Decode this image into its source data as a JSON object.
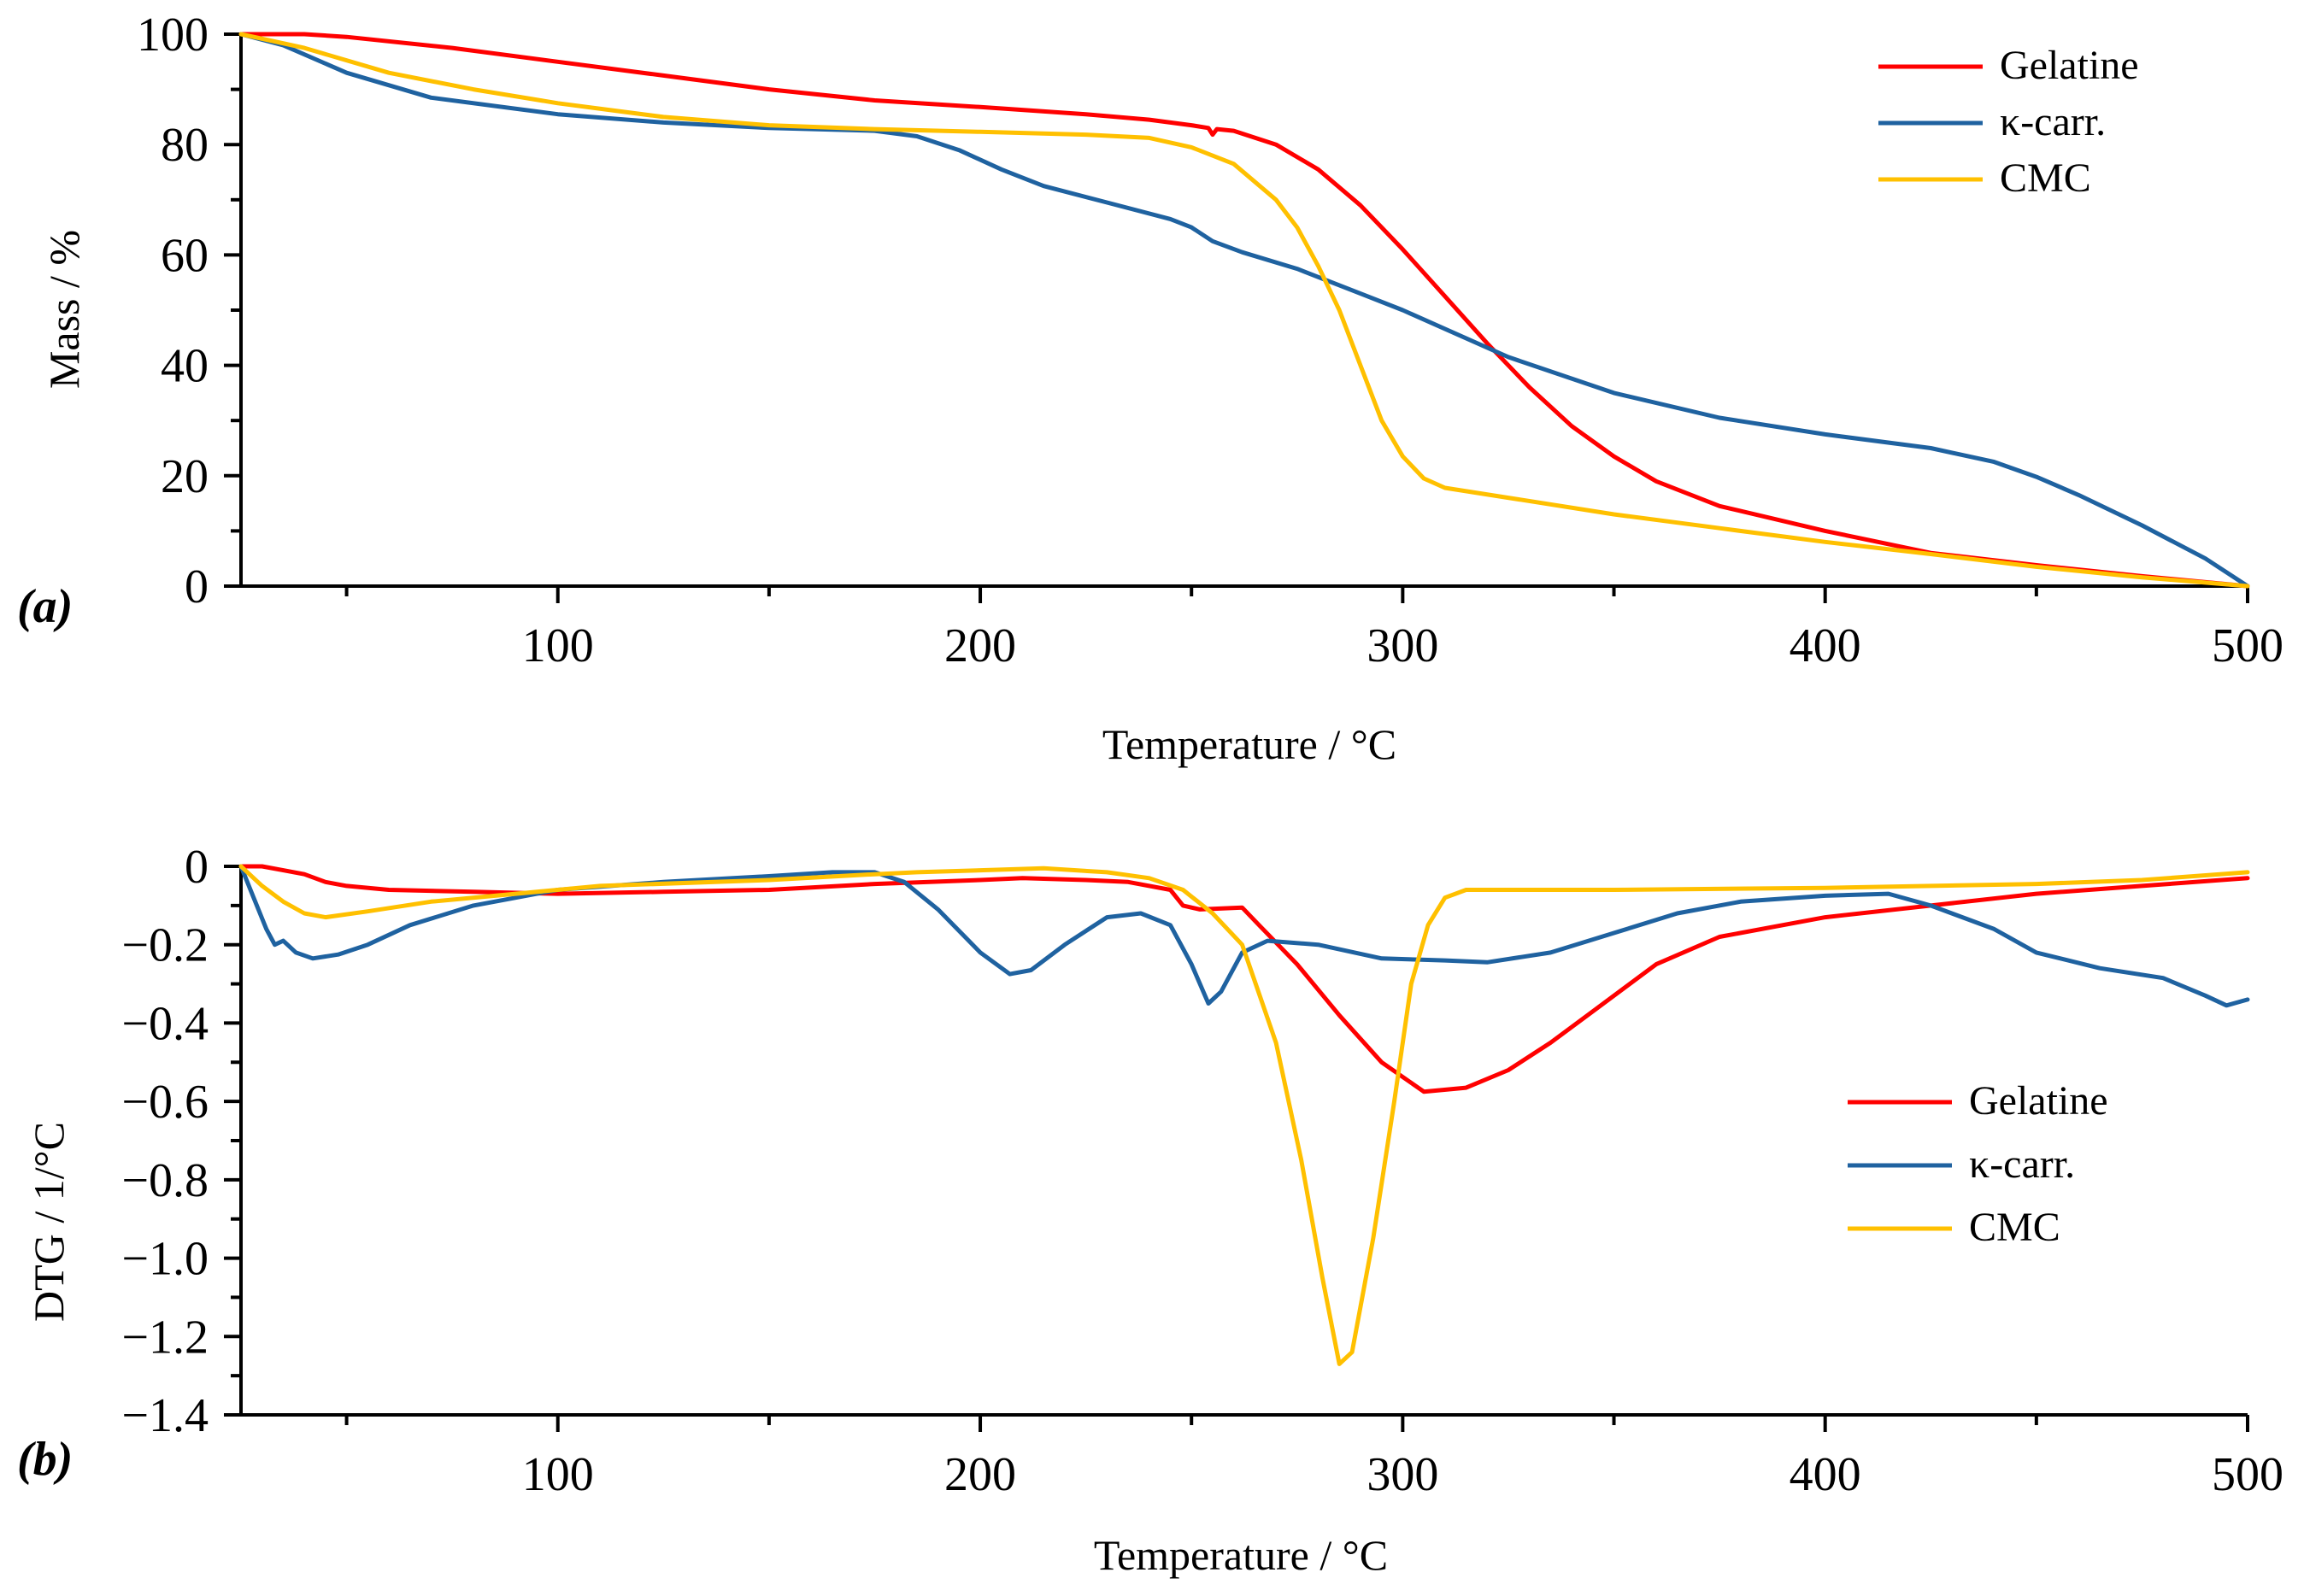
{
  "chart_data": [
    {
      "id": "a",
      "type": "line",
      "panel_label": "(a)",
      "xlabel": "Temperature /  °C",
      "ylabel": "Mass / %",
      "xlim": [
        25,
        500
      ],
      "ylim": [
        0,
        100
      ],
      "xticks": [
        100,
        200,
        300,
        400,
        500
      ],
      "yticks": [
        0,
        20,
        40,
        60,
        80,
        100
      ],
      "legend_position": "top-right",
      "series": [
        {
          "name": "Gelatine",
          "color": "#ff0000",
          "points": [
            [
              25,
              100
            ],
            [
              40,
              100
            ],
            [
              50,
              99.5
            ],
            [
              75,
              97.5
            ],
            [
              100,
              95
            ],
            [
              125,
              92.5
            ],
            [
              150,
              90
            ],
            [
              175,
              88
            ],
            [
              200,
              86.8
            ],
            [
              225,
              85.5
            ],
            [
              240,
              84.5
            ],
            [
              250,
              83.5
            ],
            [
              254,
              83
            ],
            [
              255,
              81.8
            ],
            [
              256,
              82.8
            ],
            [
              260,
              82.5
            ],
            [
              270,
              80
            ],
            [
              280,
              75.5
            ],
            [
              290,
              69
            ],
            [
              300,
              61
            ],
            [
              310,
              52.5
            ],
            [
              320,
              44
            ],
            [
              330,
              36
            ],
            [
              340,
              29
            ],
            [
              350,
              23.5
            ],
            [
              360,
              19
            ],
            [
              375,
              14.5
            ],
            [
              400,
              10
            ],
            [
              425,
              6
            ],
            [
              450,
              3.8
            ],
            [
              475,
              1.8
            ],
            [
              500,
              0
            ]
          ]
        },
        {
          "name": "κ-carr.",
          "color": "#1f62a0",
          "points": [
            [
              25,
              100
            ],
            [
              35,
              98
            ],
            [
              50,
              93
            ],
            [
              70,
              88.5
            ],
            [
              100,
              85.5
            ],
            [
              125,
              84
            ],
            [
              150,
              83
            ],
            [
              175,
              82.5
            ],
            [
              185,
              81.5
            ],
            [
              195,
              79
            ],
            [
              205,
              75.5
            ],
            [
              215,
              72.5
            ],
            [
              230,
              69.5
            ],
            [
              245,
              66.5
            ],
            [
              250,
              65
            ],
            [
              255,
              62.5
            ],
            [
              262,
              60.5
            ],
            [
              275,
              57.5
            ],
            [
              290,
              53
            ],
            [
              300,
              50
            ],
            [
              325,
              41.5
            ],
            [
              350,
              35
            ],
            [
              375,
              30.5
            ],
            [
              400,
              27.5
            ],
            [
              425,
              25
            ],
            [
              440,
              22.5
            ],
            [
              450,
              19.8
            ],
            [
              460,
              16.5
            ],
            [
              475,
              11
            ],
            [
              490,
              5
            ],
            [
              500,
              0
            ]
          ]
        },
        {
          "name": "CMC",
          "color": "#ffc000",
          "points": [
            [
              25,
              100
            ],
            [
              40,
              97.5
            ],
            [
              60,
              93
            ],
            [
              80,
              90
            ],
            [
              100,
              87.5
            ],
            [
              125,
              85
            ],
            [
              150,
              83.5
            ],
            [
              175,
              82.8
            ],
            [
              200,
              82.3
            ],
            [
              225,
              81.8
            ],
            [
              240,
              81.2
            ],
            [
              250,
              79.5
            ],
            [
              260,
              76.5
            ],
            [
              270,
              70
            ],
            [
              275,
              65
            ],
            [
              280,
              58
            ],
            [
              285,
              50
            ],
            [
              290,
              40
            ],
            [
              295,
              30
            ],
            [
              300,
              23.5
            ],
            [
              305,
              19.5
            ],
            [
              310,
              17.8
            ],
            [
              325,
              16
            ],
            [
              350,
              13
            ],
            [
              375,
              10.5
            ],
            [
              400,
              8
            ],
            [
              425,
              5.8
            ],
            [
              450,
              3.5
            ],
            [
              475,
              1.6
            ],
            [
              500,
              0
            ]
          ]
        }
      ]
    },
    {
      "id": "b",
      "type": "line",
      "panel_label": "(b)",
      "xlabel": "Temperature / °C",
      "ylabel": "DTG /  1/°C",
      "xlim": [
        25,
        500
      ],
      "ylim": [
        -1.4,
        0
      ],
      "xticks": [
        100,
        200,
        300,
        400,
        500
      ],
      "yticks": [
        0,
        -0.2,
        -0.4,
        -0.6,
        -0.8,
        -1.0,
        -1.2,
        -1.4
      ],
      "ytick_labels": [
        "0",
        "−0.2",
        "−0.4",
        "−0.6",
        "−0.8",
        "−1.0",
        "−1.2",
        "−1.4"
      ],
      "legend_position": "center-right",
      "series": [
        {
          "name": "Gelatine",
          "color": "#ff0000",
          "points": [
            [
              25,
              0
            ],
            [
              30,
              0
            ],
            [
              35,
              -0.01
            ],
            [
              40,
              -0.02
            ],
            [
              45,
              -0.04
            ],
            [
              50,
              -0.05
            ],
            [
              60,
              -0.06
            ],
            [
              80,
              -0.065
            ],
            [
              100,
              -0.07
            ],
            [
              125,
              -0.065
            ],
            [
              150,
              -0.06
            ],
            [
              175,
              -0.045
            ],
            [
              200,
              -0.035
            ],
            [
              210,
              -0.03
            ],
            [
              225,
              -0.035
            ],
            [
              235,
              -0.04
            ],
            [
              245,
              -0.06
            ],
            [
              248,
              -0.1
            ],
            [
              252,
              -0.11
            ],
            [
              262,
              -0.105
            ],
            [
              266,
              -0.15
            ],
            [
              275,
              -0.25
            ],
            [
              285,
              -0.38
            ],
            [
              295,
              -0.5
            ],
            [
              305,
              -0.575
            ],
            [
              315,
              -0.565
            ],
            [
              325,
              -0.52
            ],
            [
              335,
              -0.45
            ],
            [
              345,
              -0.37
            ],
            [
              360,
              -0.25
            ],
            [
              375,
              -0.18
            ],
            [
              400,
              -0.13
            ],
            [
              425,
              -0.1
            ],
            [
              450,
              -0.07
            ],
            [
              475,
              -0.05
            ],
            [
              500,
              -0.03
            ]
          ]
        },
        {
          "name": "κ-carr.",
          "color": "#1f62a0",
          "points": [
            [
              25,
              0
            ],
            [
              28,
              -0.08
            ],
            [
              31,
              -0.16
            ],
            [
              33,
              -0.2
            ],
            [
              35,
              -0.19
            ],
            [
              38,
              -0.22
            ],
            [
              42,
              -0.235
            ],
            [
              48,
              -0.225
            ],
            [
              55,
              -0.2
            ],
            [
              65,
              -0.15
            ],
            [
              80,
              -0.1
            ],
            [
              100,
              -0.06
            ],
            [
              125,
              -0.04
            ],
            [
              150,
              -0.025
            ],
            [
              165,
              -0.015
            ],
            [
              175,
              -0.015
            ],
            [
              182,
              -0.04
            ],
            [
              190,
              -0.11
            ],
            [
              200,
              -0.22
            ],
            [
              207,
              -0.275
            ],
            [
              212,
              -0.265
            ],
            [
              220,
              -0.2
            ],
            [
              230,
              -0.13
            ],
            [
              238,
              -0.12
            ],
            [
              245,
              -0.15
            ],
            [
              250,
              -0.25
            ],
            [
              254,
              -0.35
            ],
            [
              257,
              -0.32
            ],
            [
              262,
              -0.22
            ],
            [
              268,
              -0.19
            ],
            [
              280,
              -0.2
            ],
            [
              295,
              -0.235
            ],
            [
              310,
              -0.24
            ],
            [
              320,
              -0.245
            ],
            [
              335,
              -0.22
            ],
            [
              350,
              -0.17
            ],
            [
              365,
              -0.12
            ],
            [
              380,
              -0.09
            ],
            [
              400,
              -0.075
            ],
            [
              415,
              -0.07
            ],
            [
              425,
              -0.1
            ],
            [
              440,
              -0.16
            ],
            [
              450,
              -0.22
            ],
            [
              465,
              -0.26
            ],
            [
              480,
              -0.285
            ],
            [
              490,
              -0.33
            ],
            [
              495,
              -0.355
            ],
            [
              500,
              -0.34
            ]
          ]
        },
        {
          "name": "CMC",
          "color": "#ffc000",
          "points": [
            [
              25,
              0
            ],
            [
              30,
              -0.05
            ],
            [
              35,
              -0.09
            ],
            [
              40,
              -0.12
            ],
            [
              45,
              -0.13
            ],
            [
              55,
              -0.115
            ],
            [
              70,
              -0.09
            ],
            [
              90,
              -0.07
            ],
            [
              110,
              -0.05
            ],
            [
              150,
              -0.035
            ],
            [
              175,
              -0.02
            ],
            [
              185,
              -0.015
            ],
            [
              200,
              -0.01
            ],
            [
              215,
              -0.005
            ],
            [
              230,
              -0.015
            ],
            [
              240,
              -0.03
            ],
            [
              248,
              -0.06
            ],
            [
              255,
              -0.12
            ],
            [
              262,
              -0.2
            ],
            [
              270,
              -0.45
            ],
            [
              276,
              -0.75
            ],
            [
              281,
              -1.05
            ],
            [
              285,
              -1.27
            ],
            [
              288,
              -1.24
            ],
            [
              293,
              -0.95
            ],
            [
              298,
              -0.6
            ],
            [
              302,
              -0.3
            ],
            [
              306,
              -0.15
            ],
            [
              310,
              -0.08
            ],
            [
              315,
              -0.06
            ],
            [
              350,
              -0.06
            ],
            [
              400,
              -0.055
            ],
            [
              450,
              -0.045
            ],
            [
              475,
              -0.035
            ],
            [
              500,
              -0.015
            ]
          ]
        }
      ]
    }
  ]
}
